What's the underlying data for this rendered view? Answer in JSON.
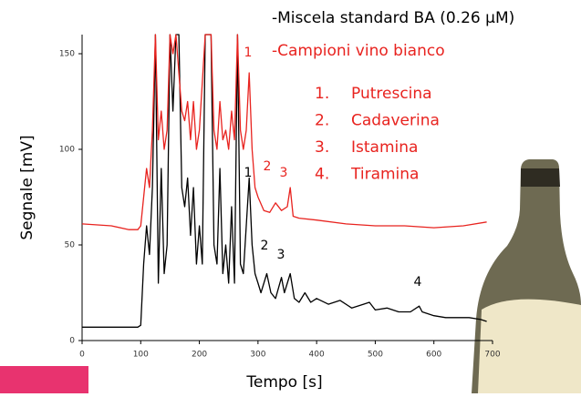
{
  "chart_data": {
    "type": "line",
    "xlabel": "Tempo [s]",
    "ylabel": "Segnale [mV]",
    "xlim": [
      0,
      700
    ],
    "ylim": [
      0,
      160
    ],
    "xticks": [
      0,
      100,
      200,
      300,
      400,
      500,
      600,
      700
    ],
    "yticks": [
      0,
      50,
      100,
      150
    ],
    "series": [
      {
        "name": "-Miscela standard BA (0.26 µM)",
        "color": "#000000",
        "x": [
          0,
          50,
          95,
          100,
          105,
          110,
          115,
          120,
          125,
          130,
          135,
          140,
          145,
          150,
          155,
          160,
          165,
          170,
          175,
          180,
          185,
          190,
          195,
          200,
          205,
          210,
          215,
          220,
          225,
          230,
          235,
          240,
          245,
          250,
          255,
          260,
          265,
          270,
          275,
          280,
          285,
          290,
          295,
          300,
          305,
          315,
          322,
          330,
          340,
          345,
          355,
          362,
          370,
          380,
          390,
          400,
          420,
          440,
          460,
          480,
          490,
          500,
          520,
          540,
          560,
          575,
          580,
          600,
          620,
          640,
          660,
          680,
          690
        ],
        "values": [
          7,
          7,
          7,
          8,
          40,
          60,
          45,
          80,
          160,
          30,
          90,
          35,
          50,
          160,
          120,
          160,
          160,
          80,
          70,
          85,
          55,
          80,
          40,
          60,
          40,
          160,
          160,
          160,
          50,
          40,
          90,
          35,
          50,
          30,
          70,
          30,
          160,
          40,
          35,
          60,
          85,
          50,
          35,
          30,
          25,
          35,
          25,
          22,
          33,
          25,
          35,
          22,
          20,
          25,
          20,
          22,
          19,
          21,
          17,
          19,
          20,
          16,
          17,
          15,
          15,
          18,
          15,
          13,
          12,
          12,
          12,
          11,
          10
        ]
      },
      {
        "name": "-Campioni vino bianco",
        "color": "#e8231f",
        "x": [
          0,
          50,
          80,
          95,
          100,
          105,
          110,
          115,
          120,
          125,
          130,
          135,
          140,
          145,
          150,
          155,
          160,
          170,
          175,
          180,
          185,
          190,
          195,
          200,
          210,
          220,
          225,
          230,
          235,
          240,
          245,
          250,
          255,
          260,
          265,
          270,
          275,
          280,
          285,
          290,
          295,
          300,
          310,
          320,
          330,
          340,
          350,
          355,
          360,
          370,
          400,
          450,
          500,
          550,
          600,
          650,
          690
        ],
        "values": [
          61,
          60,
          58,
          58,
          60,
          75,
          90,
          80,
          110,
          160,
          105,
          120,
          100,
          110,
          160,
          150,
          160,
          120,
          115,
          125,
          105,
          125,
          100,
          110,
          160,
          160,
          110,
          100,
          125,
          105,
          110,
          100,
          120,
          105,
          160,
          110,
          100,
          110,
          140,
          100,
          80,
          75,
          68,
          67,
          72,
          68,
          70,
          80,
          65,
          64,
          63,
          61,
          60,
          60,
          59,
          60,
          62
        ]
      }
    ],
    "annotations": {
      "black": [
        "1",
        "2",
        "3",
        "4"
      ],
      "red": [
        "1",
        "2",
        "3"
      ]
    },
    "compounds": [
      {
        "number": "1.",
        "name": "Putrescina"
      },
      {
        "number": "2.",
        "name": "Cadaverina"
      },
      {
        "number": "3.",
        "name": "Istamina"
      },
      {
        "number": "4.",
        "name": "Tiramina"
      }
    ]
  }
}
